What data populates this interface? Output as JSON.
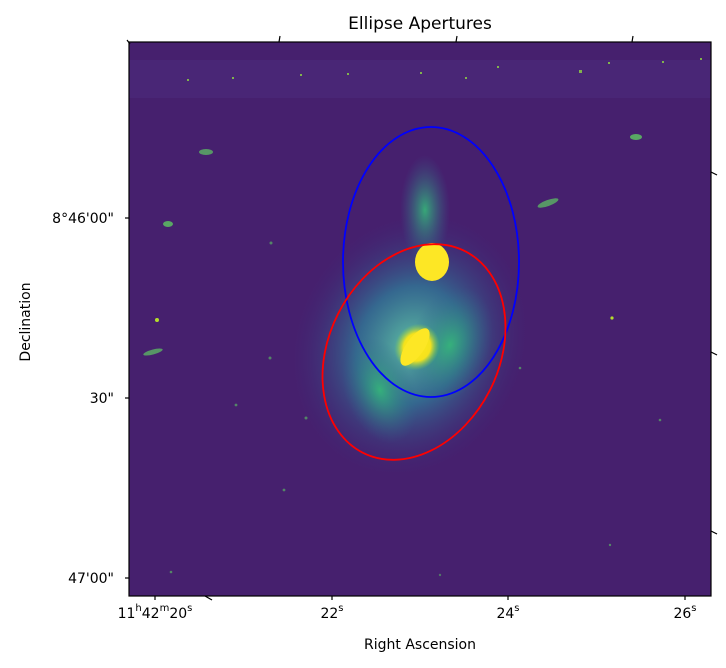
{
  "figure": {
    "title": "Ellipse Apertures",
    "xlabel": "Right Ascension",
    "ylabel": "Declination",
    "colormap": "viridis",
    "x_ticks": [
      {
        "h": "11",
        "m": "42",
        "s": "20",
        "text_prefix": "11",
        "sup1": "h",
        "text_mid": "42",
        "sup2": "m",
        "text_sec": "20",
        "sup3": "s"
      },
      {
        "text_sec": "22",
        "sup3": "s"
      },
      {
        "text_sec": "24",
        "sup3": "s"
      },
      {
        "text_sec": "26",
        "sup3": "s"
      }
    ],
    "y_ticks": [
      "8°46'00\"",
      "30\"",
      "47'00\""
    ]
  },
  "apertures": [
    {
      "name": "blue-aperture",
      "color": "#0000ff"
    },
    {
      "name": "red-aperture",
      "color": "#ff0000"
    }
  ]
}
